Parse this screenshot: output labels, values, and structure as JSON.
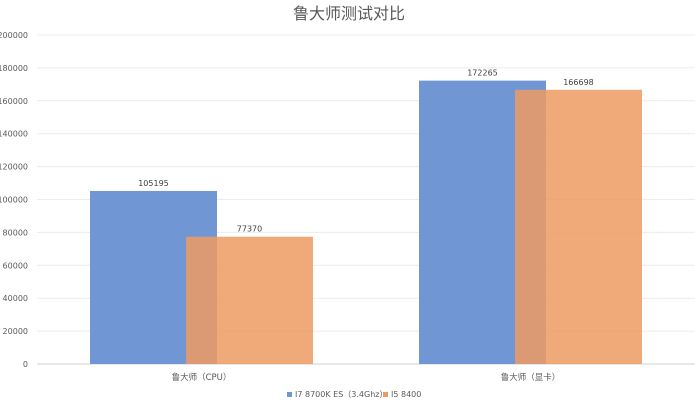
{
  "chart_data": {
    "type": "bar",
    "title": "鲁大师测试对比",
    "categories": [
      "鲁大师（CPU）",
      "鲁大师（显卡）"
    ],
    "series": [
      {
        "name": "I7 8700K ES（3.4Ghz）",
        "values": [
          105195,
          172265
        ],
        "color": "#7096D4"
      },
      {
        "name": "I5 8400",
        "values": [
          77370,
          166698
        ],
        "color": "#ED9B63"
      }
    ],
    "ylim": [
      0,
      200000
    ],
    "yticks": [
      0,
      20000,
      40000,
      60000,
      80000,
      100000,
      120000,
      140000,
      160000,
      180000,
      200000
    ],
    "grid": true,
    "legend": "bottom",
    "xlabel": "",
    "ylabel": ""
  }
}
